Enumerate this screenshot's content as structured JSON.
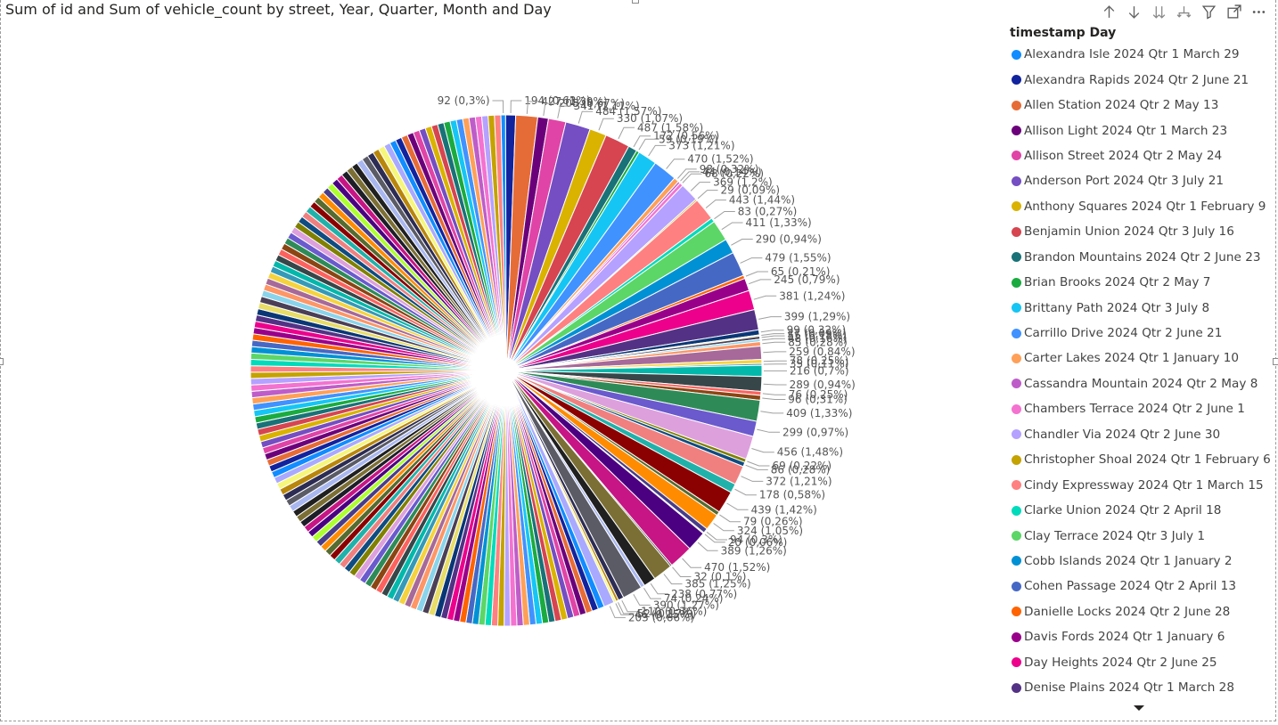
{
  "title": "Sum of id and Sum of vehicle_count by street, Year, Quarter, Month and Day",
  "toolbar": [
    "drill-up-icon",
    "drill-down-icon",
    "expand-all-icon",
    "expand-hierarchy-icon",
    "filter-icon",
    "focus-mode-icon",
    "more-options-icon"
  ],
  "legend": {
    "title": "timestamp Day",
    "items": [
      {
        "label": "Alexandra Isle 2024 Qtr 1 March 29",
        "color": "#118DFF"
      },
      {
        "label": "Alexandra Rapids 2024 Qtr 2 June 21",
        "color": "#12239E"
      },
      {
        "label": "Allen Station 2024 Qtr 2 May 13",
        "color": "#E66C37"
      },
      {
        "label": "Allison Light 2024 Qtr 1 March 23",
        "color": "#6B007B"
      },
      {
        "label": "Allison Street 2024 Qtr 2 May 24",
        "color": "#E044A7"
      },
      {
        "label": "Anderson Port 2024 Qtr 3 July 21",
        "color": "#744EC2"
      },
      {
        "label": "Anthony Squares 2024 Qtr 1 February 9",
        "color": "#D9B300"
      },
      {
        "label": "Benjamin Union 2024 Qtr 3 July 16",
        "color": "#D64550"
      },
      {
        "label": "Brandon Mountains 2024 Qtr 2 June 23",
        "color": "#197278"
      },
      {
        "label": "Brian Brooks 2024 Qtr 2 May 7",
        "color": "#1AAB40"
      },
      {
        "label": "Brittany Path 2024 Qtr 3 July 8",
        "color": "#15C6F4"
      },
      {
        "label": "Carrillo Drive 2024 Qtr 2 June 21",
        "color": "#4092FF"
      },
      {
        "label": "Carter Lakes 2024 Qtr 1 January 10",
        "color": "#FFA058"
      },
      {
        "label": "Cassandra Mountain 2024 Qtr 2 May 8",
        "color": "#BE5DC9"
      },
      {
        "label": "Chambers Terrace 2024 Qtr 2 June 1",
        "color": "#F472D0"
      },
      {
        "label": "Chandler Via 2024 Qtr 2 June 30",
        "color": "#B5A1FF"
      },
      {
        "label": "Christopher Shoal 2024 Qtr 1 February 6",
        "color": "#C4A200"
      },
      {
        "label": "Cindy Expressway 2024 Qtr 1 March 15",
        "color": "#FF8080"
      },
      {
        "label": "Clarke Union 2024 Qtr 2 April 18",
        "color": "#00DBBC"
      },
      {
        "label": "Clay Terrace 2024 Qtr 3 July 1",
        "color": "#5BD667"
      },
      {
        "label": "Cobb Islands 2024 Qtr 1 January 2",
        "color": "#0091D5"
      },
      {
        "label": "Cohen Passage 2024 Qtr 2 April 13",
        "color": "#4668C5"
      },
      {
        "label": "Danielle Locks 2024 Qtr 2 June 28",
        "color": "#FF6300"
      },
      {
        "label": "Davis Fords 2024 Qtr 1 January 6",
        "color": "#99008A"
      },
      {
        "label": "Day Heights 2024 Qtr 2 June 25",
        "color": "#EC008C"
      },
      {
        "label": "Denise Plains 2024 Qtr 1 March 28",
        "color": "#533285"
      }
    ]
  },
  "chart_data": {
    "type": "pie",
    "title": "Sum of id and Sum of vehicle_count by street, Year, Quarter, Month and Day",
    "legend_title": "timestamp Day",
    "legend_position": "right",
    "slices": [
      {
        "value": 92,
        "label": "92 (0,3%)"
      },
      {
        "value": 194,
        "label": "194 (0,63%)"
      },
      {
        "value": 427,
        "label": "427 (1,39%)"
      },
      {
        "value": 208,
        "label": "208 (0,67%)"
      },
      {
        "value": 341,
        "label": "341 (1,11%)"
      },
      {
        "value": 484,
        "label": "484 (1,57%)"
      },
      {
        "value": 330,
        "label": "330 (1,07%)"
      },
      {
        "value": 487,
        "label": "487 (1,58%)"
      },
      {
        "value": 172,
        "label": "172 (0,56%)"
      },
      {
        "value": 59,
        "label": "59 (0,19%)"
      },
      {
        "value": 373,
        "label": "373 (1,21%)"
      },
      {
        "value": 470,
        "label": "470 (1,52%)"
      },
      {
        "value": 98,
        "label": "98 (0,32%)"
      },
      {
        "value": 44,
        "label": "44 (0,14%)"
      },
      {
        "value": 68,
        "label": "68 (0,22%)"
      },
      {
        "value": 369,
        "label": "369 (1,2%)"
      },
      {
        "value": 29,
        "label": "29 (0,09%)"
      },
      {
        "value": 443,
        "label": "443 (1,44%)"
      },
      {
        "value": 83,
        "label": "83 (0,27%)"
      },
      {
        "value": 411,
        "label": "411 (1,33%)"
      },
      {
        "value": 290,
        "label": "290 (0,94%)"
      },
      {
        "value": 479,
        "label": "479 (1,55%)"
      },
      {
        "value": 65,
        "label": "65 (0,21%)"
      },
      {
        "value": 245,
        "label": "245 (0,79%)"
      },
      {
        "value": 381,
        "label": "381 (1,24%)"
      },
      {
        "value": 399,
        "label": "399 (1,29%)"
      },
      {
        "value": 99,
        "label": "99 (0,32%)"
      },
      {
        "value": 27,
        "label": "27 (0,09%)"
      },
      {
        "value": 55,
        "label": "55 (0,18%)"
      },
      {
        "value": 48,
        "label": "48 (0,16%)"
      },
      {
        "value": 85,
        "label": "85 (0,28%)"
      },
      {
        "value": 259,
        "label": "259 (0,84%)"
      },
      {
        "value": 78,
        "label": "78 (0,25%)"
      },
      {
        "value": 35,
        "label": "35 (0,11%)"
      },
      {
        "value": 216,
        "label": "216 (0,7%)"
      },
      {
        "value": 289,
        "label": "289 (0,94%)"
      },
      {
        "value": 76,
        "label": "76 (0,25%)"
      },
      {
        "value": 96,
        "label": "96 (0,31%)"
      },
      {
        "value": 409,
        "label": "409 (1,33%)"
      },
      {
        "value": 299,
        "label": "299 (0,97%)"
      },
      {
        "value": 456,
        "label": "456 (1,48%)"
      },
      {
        "value": 69,
        "label": "69 (0,22%)"
      },
      {
        "value": 86,
        "label": "86 (0,28%)"
      },
      {
        "value": 372,
        "label": "372 (1,21%)"
      },
      {
        "value": 178,
        "label": "178 (0,58%)"
      },
      {
        "value": 439,
        "label": "439 (1,42%)"
      },
      {
        "value": 79,
        "label": "79 (0,26%)"
      },
      {
        "value": 324,
        "label": "324 (1,05%)"
      },
      {
        "value": 94,
        "label": "94 (0,3%)"
      },
      {
        "value": 20,
        "label": "20 (0,06%)"
      },
      {
        "value": 389,
        "label": "389 (1,26%)"
      },
      {
        "value": 470,
        "label": "470 (1,52%)"
      },
      {
        "value": 32,
        "label": "32 (0,1%)"
      },
      {
        "value": 385,
        "label": "385 (1,25%)"
      },
      {
        "value": 238,
        "label": "238 (0,77%)"
      },
      {
        "value": 74,
        "label": "74 (0,24%)"
      },
      {
        "value": 390,
        "label": "390 (1,27%)"
      },
      {
        "value": 110,
        "label": "110 (0,36%)"
      },
      {
        "value": 52,
        "label": "52 (0,17%)"
      },
      {
        "value": 46,
        "label": "46 (0,15%)"
      },
      {
        "value": 203,
        "label": "203 (0,66%)"
      }
    ],
    "total_percent_basis": 30900,
    "palette": [
      "#118DFF",
      "#12239E",
      "#E66C37",
      "#6B007B",
      "#E044A7",
      "#744EC2",
      "#D9B300",
      "#D64550",
      "#197278",
      "#1AAB40",
      "#15C6F4",
      "#4092FF",
      "#FFA058",
      "#BE5DC9",
      "#F472D0",
      "#B5A1FF",
      "#C4A200",
      "#FF8080",
      "#00DBBC",
      "#5BD667",
      "#0091D5",
      "#4668C5",
      "#FF6300",
      "#99008A",
      "#EC008C",
      "#533285",
      "#093776",
      "#E7DD68",
      "#4A3F56",
      "#8AD4EB",
      "#FE9666",
      "#A66999",
      "#F5D33F",
      "#3599B8",
      "#01B8AA",
      "#374649",
      "#FD625E",
      "#8B4513",
      "#2E8B57",
      "#6A5ACD",
      "#DDA0DD",
      "#808000",
      "#0F4C81",
      "#F08080",
      "#20B2AA",
      "#8B0000",
      "#556B2F",
      "#FF8C00",
      "#483D8B",
      "#ADFF2F",
      "#4B0082",
      "#C71585",
      "#1E1E28",
      "#7B6F35",
      "#202020",
      "#A9B7F0",
      "#5B5B66",
      "#2C2C54",
      "#B8860B",
      "#F6F67A",
      "#A9A9FF"
    ]
  }
}
